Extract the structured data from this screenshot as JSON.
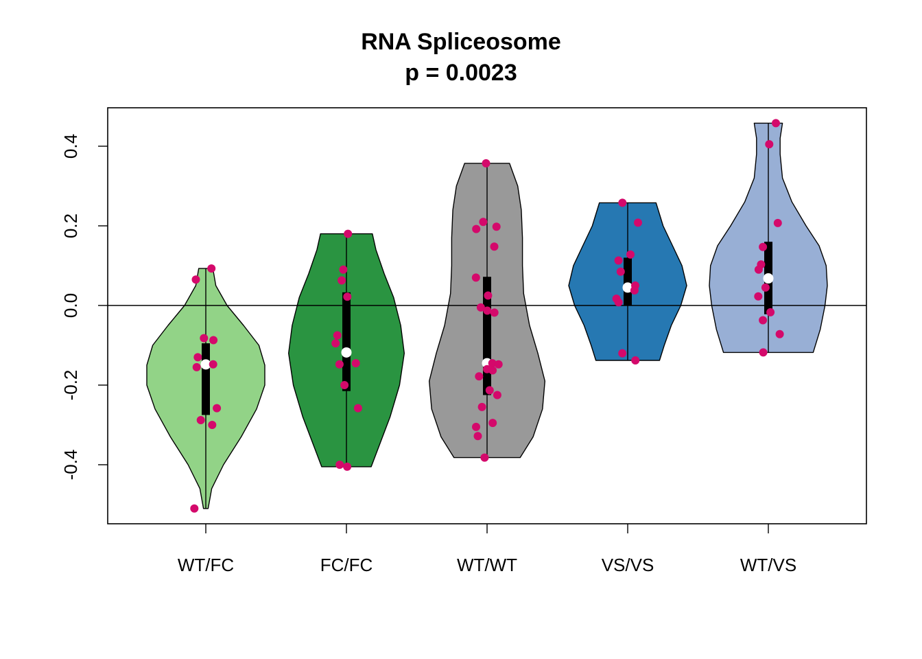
{
  "chart_data": {
    "type": "violin",
    "title": "RNA Spliceosome",
    "subtitle": "p = 0.0023",
    "xlabel": "",
    "ylabel": "",
    "ylim": [
      -0.545,
      0.5
    ],
    "yticks": [
      -0.4,
      -0.2,
      0.0,
      0.2,
      0.4
    ],
    "ytick_labels": [
      "-0.4",
      "-0.2",
      "0.0",
      "0.2",
      "0.4"
    ],
    "reference_line_y": 0.0,
    "grid": false,
    "point_color": "#D4096B",
    "median_color": "#FFFFFF",
    "groups": [
      {
        "label": "WT/FC",
        "fill": "#92D387",
        "min": -0.51,
        "max": 0.093,
        "q1": -0.275,
        "q3": -0.095,
        "median": -0.148,
        "density": [
          [
            -0.51,
            0.04
          ],
          [
            -0.46,
            0.1
          ],
          [
            -0.4,
            0.3
          ],
          [
            -0.33,
            0.6
          ],
          [
            -0.26,
            0.86
          ],
          [
            -0.2,
            1.0
          ],
          [
            -0.15,
            1.0
          ],
          [
            -0.1,
            0.9
          ],
          [
            -0.05,
            0.64
          ],
          [
            0.0,
            0.36
          ],
          [
            0.05,
            0.17
          ],
          [
            0.093,
            0.12
          ]
        ],
        "points": [
          0.093,
          0.065,
          -0.082,
          -0.087,
          -0.13,
          -0.148,
          -0.155,
          -0.258,
          -0.288,
          -0.3,
          -0.51
        ]
      },
      {
        "label": "FC/FC",
        "fill": "#2A9441",
        "min": -0.405,
        "max": 0.18,
        "q1": -0.215,
        "q3": 0.033,
        "median": -0.118,
        "density": [
          [
            -0.405,
            0.42
          ],
          [
            -0.35,
            0.56
          ],
          [
            -0.28,
            0.74
          ],
          [
            -0.2,
            0.9
          ],
          [
            -0.12,
            0.98
          ],
          [
            -0.05,
            0.92
          ],
          [
            0.02,
            0.8
          ],
          [
            0.08,
            0.64
          ],
          [
            0.14,
            0.5
          ],
          [
            0.18,
            0.44
          ]
        ],
        "points": [
          0.18,
          0.09,
          0.063,
          0.022,
          -0.075,
          -0.095,
          -0.145,
          -0.148,
          -0.2,
          -0.258,
          -0.4,
          -0.405
        ]
      },
      {
        "label": "WT/WT",
        "fill": "#999999",
        "min": -0.382,
        "max": 0.357,
        "q1": -0.225,
        "q3": 0.072,
        "median": -0.145,
        "density": [
          [
            -0.382,
            0.56
          ],
          [
            -0.33,
            0.78
          ],
          [
            -0.26,
            0.94
          ],
          [
            -0.19,
            0.98
          ],
          [
            -0.12,
            0.86
          ],
          [
            -0.05,
            0.72
          ],
          [
            0.03,
            0.62
          ],
          [
            0.1,
            0.6
          ],
          [
            0.17,
            0.6
          ],
          [
            0.24,
            0.58
          ],
          [
            0.3,
            0.52
          ],
          [
            0.357,
            0.38
          ]
        ],
        "points": [
          0.357,
          0.21,
          0.198,
          0.192,
          0.148,
          0.07,
          0.025,
          -0.005,
          -0.013,
          -0.018,
          -0.145,
          -0.148,
          -0.16,
          -0.163,
          -0.178,
          -0.213,
          -0.225,
          -0.255,
          -0.295,
          -0.305,
          -0.328,
          -0.382
        ]
      },
      {
        "label": "VS/VS",
        "fill": "#2678B2",
        "min": -0.138,
        "max": 0.258,
        "q1": 0.0,
        "q3": 0.12,
        "median": 0.045,
        "density": [
          [
            -0.138,
            0.54
          ],
          [
            -0.1,
            0.62
          ],
          [
            -0.05,
            0.74
          ],
          [
            0.0,
            0.9
          ],
          [
            0.05,
            1.0
          ],
          [
            0.1,
            0.92
          ],
          [
            0.15,
            0.76
          ],
          [
            0.2,
            0.6
          ],
          [
            0.258,
            0.48
          ]
        ],
        "points": [
          0.258,
          0.208,
          0.128,
          0.113,
          0.085,
          0.05,
          0.038,
          0.017,
          0.008,
          -0.12,
          -0.138
        ]
      },
      {
        "label": "WT/VS",
        "fill": "#98AFD5",
        "min": -0.118,
        "max": 0.458,
        "q1": -0.022,
        "q3": 0.16,
        "median": 0.068,
        "density": [
          [
            -0.118,
            0.76
          ],
          [
            -0.06,
            0.88
          ],
          [
            0.0,
            0.96
          ],
          [
            0.05,
            1.0
          ],
          [
            0.1,
            0.98
          ],
          [
            0.15,
            0.86
          ],
          [
            0.2,
            0.64
          ],
          [
            0.26,
            0.4
          ],
          [
            0.32,
            0.24
          ],
          [
            0.38,
            0.2
          ],
          [
            0.42,
            0.2
          ],
          [
            0.458,
            0.24
          ]
        ],
        "points": [
          0.458,
          0.405,
          0.207,
          0.147,
          0.103,
          0.09,
          0.045,
          0.023,
          -0.017,
          -0.037,
          -0.072,
          -0.118
        ]
      }
    ]
  }
}
